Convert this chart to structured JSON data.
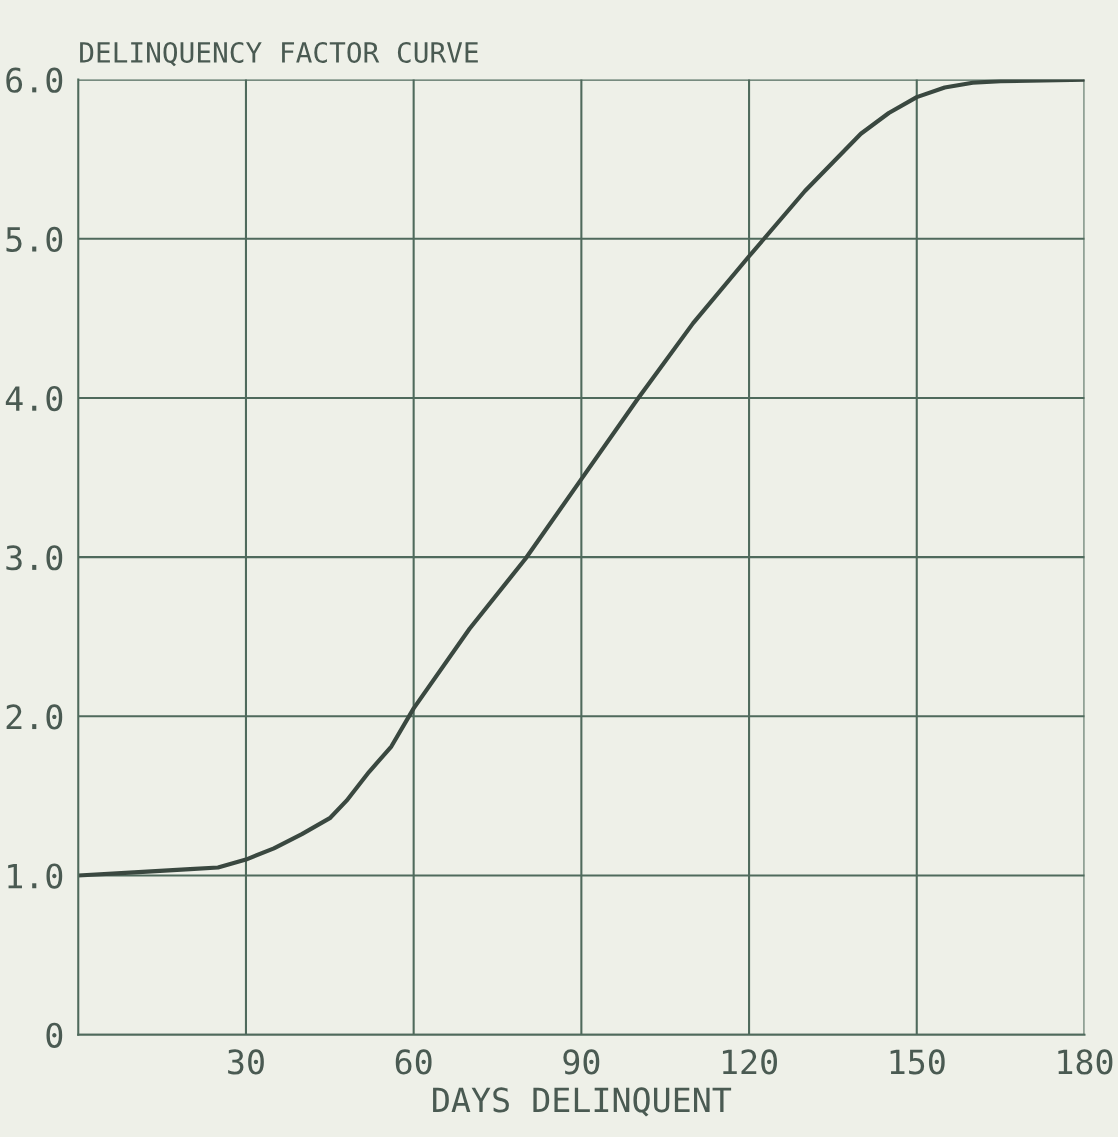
{
  "chart_data": {
    "type": "line",
    "title": "DELINQUENCY FACTOR CURVE",
    "xlabel": "DAYS DELINQUENT",
    "x": [
      0,
      10,
      20,
      25,
      30,
      35,
      40,
      45,
      48,
      52,
      56,
      60,
      70,
      80,
      90,
      100,
      110,
      120,
      130,
      140,
      145,
      150,
      155,
      160,
      165,
      180
    ],
    "series": [
      {
        "color": "#3a4840",
        "values": [
          1.0,
          1.02,
          1.04,
          1.05,
          1.1,
          1.17,
          1.26,
          1.36,
          1.47,
          1.65,
          1.81,
          2.05,
          2.55,
          2.99,
          3.49,
          3.99,
          4.47,
          4.89,
          5.3,
          5.66,
          5.79,
          5.89,
          5.95,
          5.98,
          5.99,
          6.0
        ]
      }
    ],
    "xlim": [
      0,
      180
    ],
    "xticks": [
      30,
      60,
      90,
      120,
      150,
      180
    ],
    "ylim": [
      0,
      6
    ],
    "yticks": [
      0,
      {
        "value": 1,
        "label": "1.0"
      },
      {
        "value": 2,
        "label": "2.0"
      },
      {
        "value": 3,
        "label": "3.0"
      },
      {
        "value": 4,
        "label": "4.0"
      },
      {
        "value": 5,
        "label": "5.0"
      },
      {
        "value": 6,
        "label": "6.0"
      }
    ],
    "grid": true,
    "marker": "none",
    "line_style": "solid"
  }
}
